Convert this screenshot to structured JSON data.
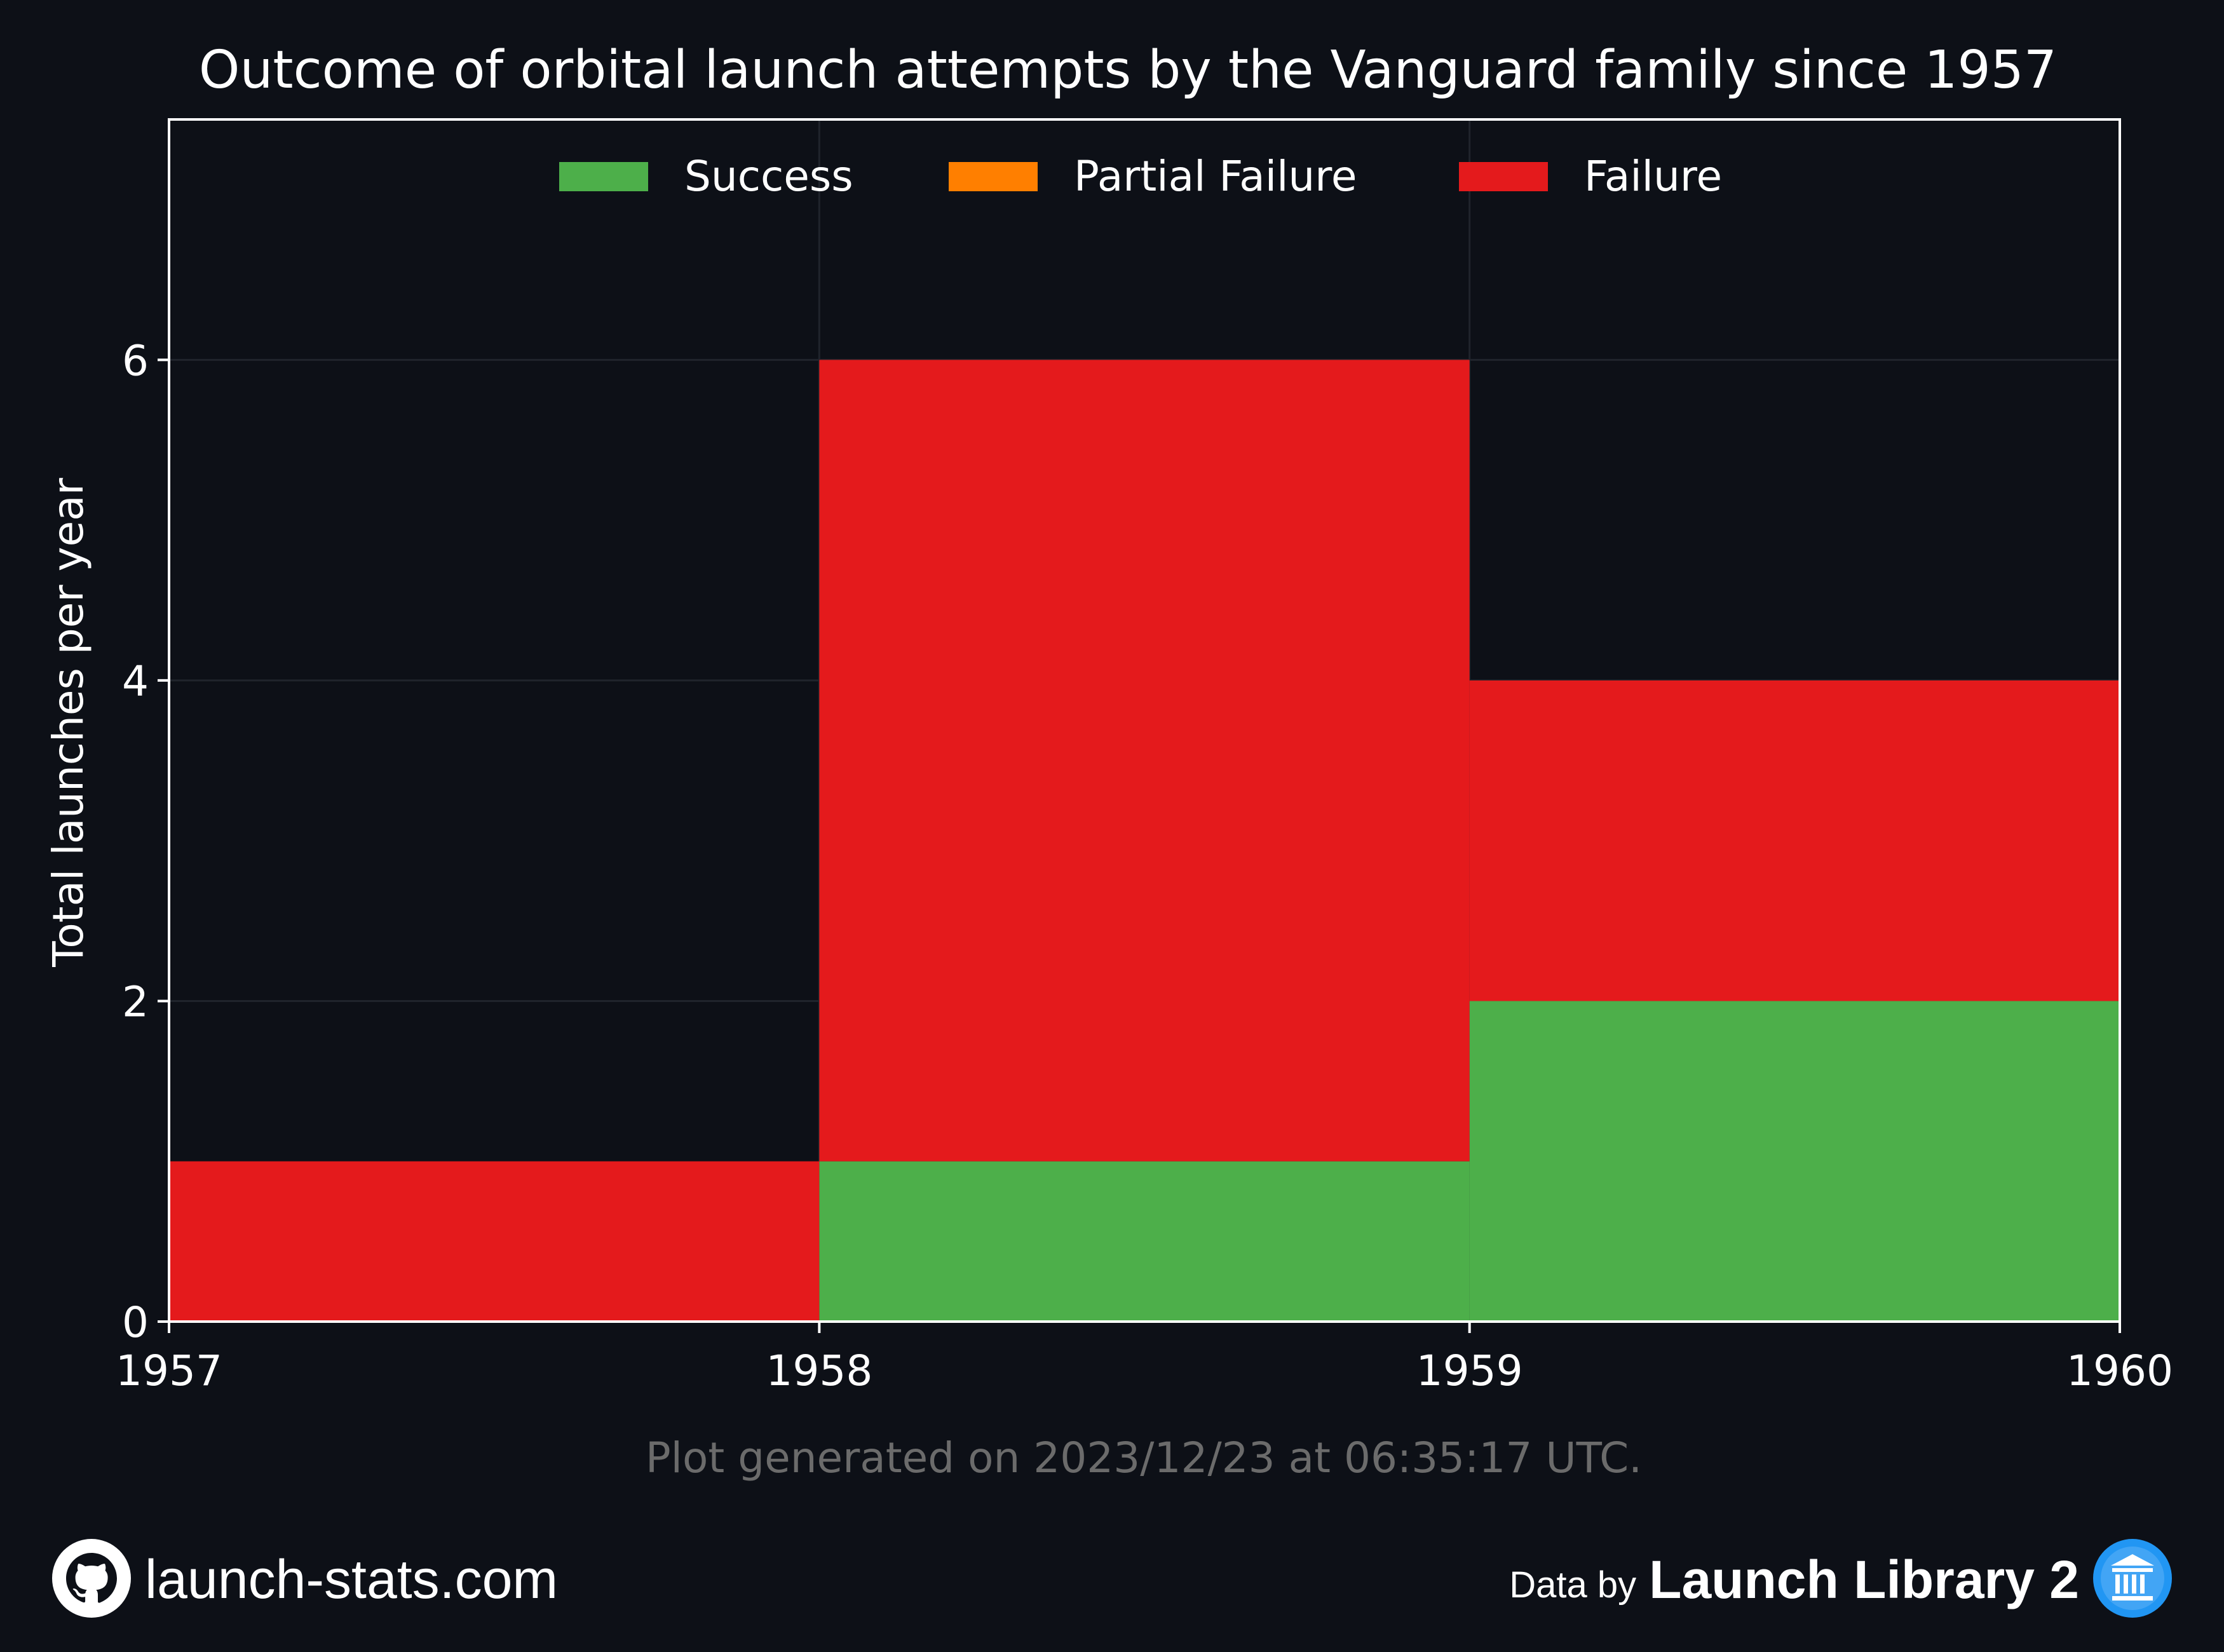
{
  "chart_data": {
    "type": "bar",
    "stacked": true,
    "step_histogram": true,
    "title": "Outcome of orbital launch attempts by the Vanguard family since 1957",
    "xlabel": "",
    "ylabel": "Total launches per year",
    "x_bin_edges": [
      1957,
      1958,
      1959,
      1960
    ],
    "x_tick_labels": [
      "1957",
      "1958",
      "1959",
      "1960"
    ],
    "xlim": [
      1957,
      1960
    ],
    "ylim": [
      0,
      7.5
    ],
    "y_ticks": [
      0,
      2,
      4,
      6
    ],
    "y_tick_labels": [
      "0",
      "2",
      "4",
      "6"
    ],
    "grid": true,
    "legend_position": "top-center",
    "series": [
      {
        "name": "Success",
        "color": "#4daf4a",
        "values": [
          0,
          1,
          2
        ]
      },
      {
        "name": "Partial Failure",
        "color": "#ff7f00",
        "values": [
          0,
          0,
          0
        ]
      },
      {
        "name": "Failure",
        "color": "#e41a1c",
        "values": [
          1,
          5,
          2
        ]
      }
    ],
    "annotation": "Plot generated on 2023/12/23 at 06:35:17 UTC."
  },
  "footer": {
    "site_label": "launch-stats.com",
    "site_icon": "github-icon",
    "credit_prefix": "Data by",
    "credit_name": "Launch Library 2",
    "credit_icon": "museum-icon"
  },
  "colors": {
    "background": "#0d1017",
    "annotation_text": "#6b6b6b",
    "grid": "#20242c",
    "axes": "#ffffff",
    "credit_icon": "#2196f3"
  }
}
